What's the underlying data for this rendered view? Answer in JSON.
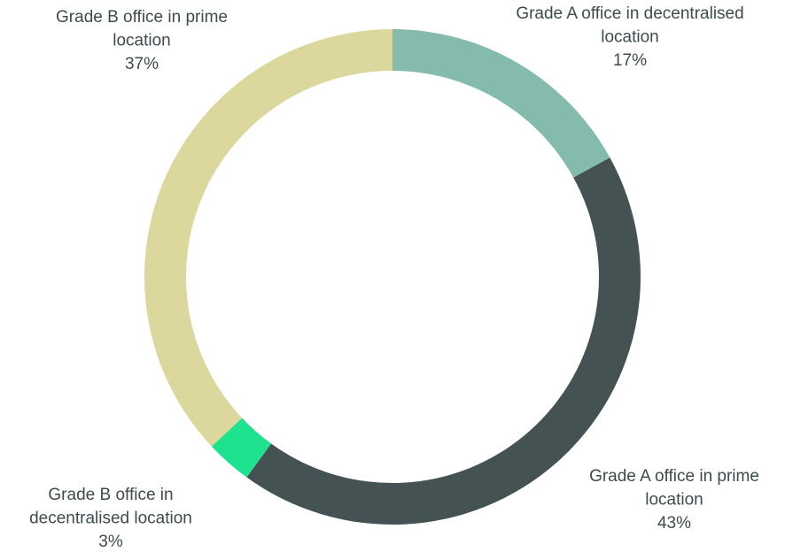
{
  "chart_data": {
    "type": "donut",
    "categories": [
      [
        "Grade A office in decentralised",
        "location"
      ],
      [
        "Grade A office in prime",
        "location"
      ],
      [
        "Grade B office in",
        "decentralised location"
      ],
      [
        "Grade B office in prime",
        "location"
      ]
    ],
    "values": [
      17,
      43,
      3,
      37
    ],
    "value_labels": [
      "17%",
      "43%",
      "3%",
      "37%"
    ],
    "colors": [
      "#85bbad",
      "#445254",
      "#1de38f",
      "#dbd79d"
    ]
  }
}
